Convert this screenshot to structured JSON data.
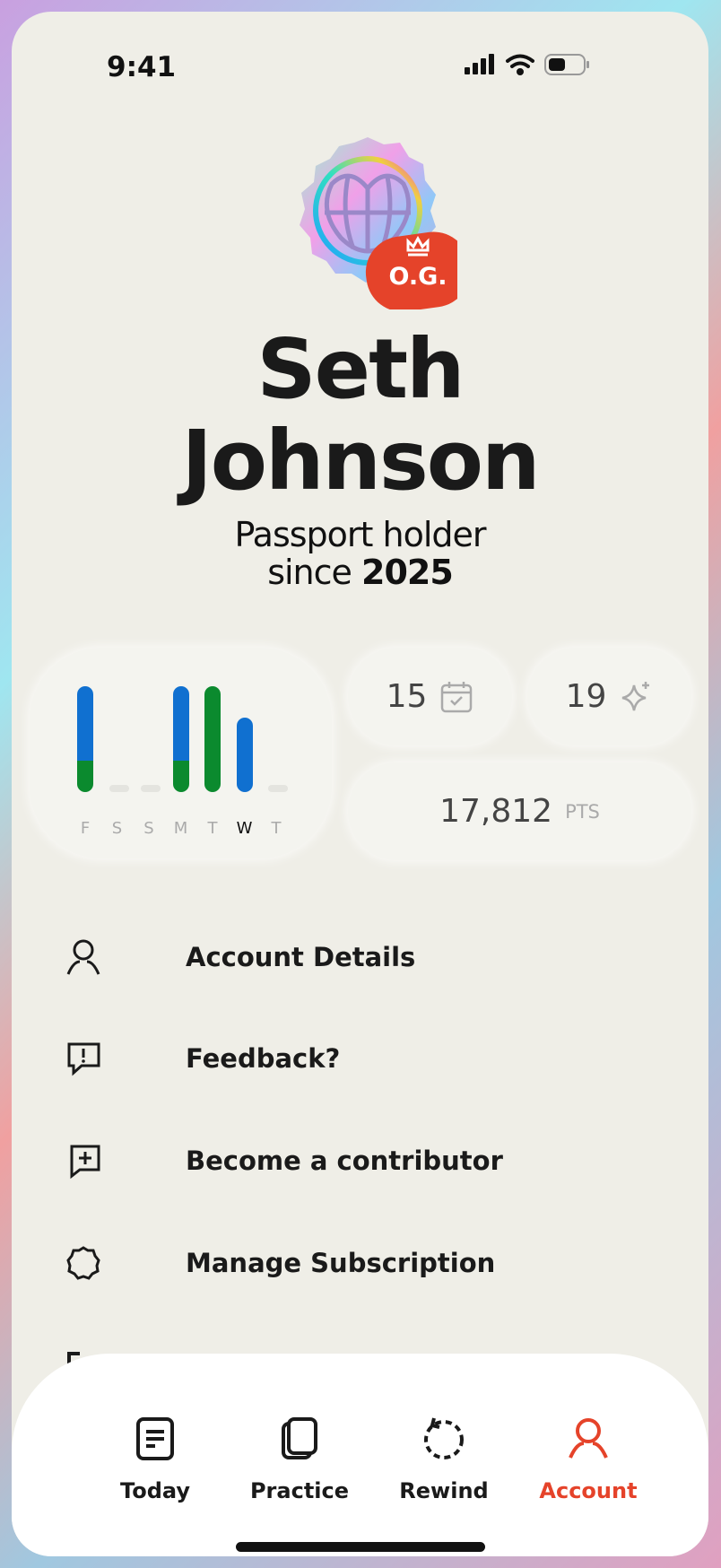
{
  "status_bar": {
    "time": "9:41"
  },
  "profile": {
    "first_name": "Seth",
    "last_name": "Johnson",
    "since_prefix": "Passport holder",
    "since_word": "since",
    "since_year": "2025",
    "badge_label": "O.G.",
    "accent": "#e5432a"
  },
  "chart_data": {
    "type": "bar",
    "stacked": true,
    "categories": [
      "F",
      "S",
      "S",
      "M",
      "T",
      "W",
      "T"
    ],
    "highlighted": "W",
    "series": [
      {
        "color": "#1070d0",
        "values": [
          70,
          0,
          0,
          70,
          0,
          70,
          0
        ]
      },
      {
        "color": "#0b8a2e",
        "values": [
          30,
          0,
          0,
          30,
          100,
          0,
          0
        ]
      }
    ]
  },
  "stats": {
    "streak": "15",
    "sparkles": "19",
    "points": "17,812",
    "points_unit": "PTS"
  },
  "menu": [
    {
      "label": "Account Details",
      "icon": "user-icon"
    },
    {
      "label": "Feedback?",
      "icon": "feedback-icon"
    },
    {
      "label": "Become a contributor",
      "icon": "message-plus-icon"
    },
    {
      "label": "Manage Subscription",
      "icon": "badge-icon"
    }
  ],
  "tabs": [
    {
      "label": "Today",
      "icon": "document-icon"
    },
    {
      "label": "Practice",
      "icon": "cards-icon"
    },
    {
      "label": "Rewind",
      "icon": "rewind-icon"
    },
    {
      "label": "Account",
      "icon": "user-icon",
      "active": true
    }
  ]
}
